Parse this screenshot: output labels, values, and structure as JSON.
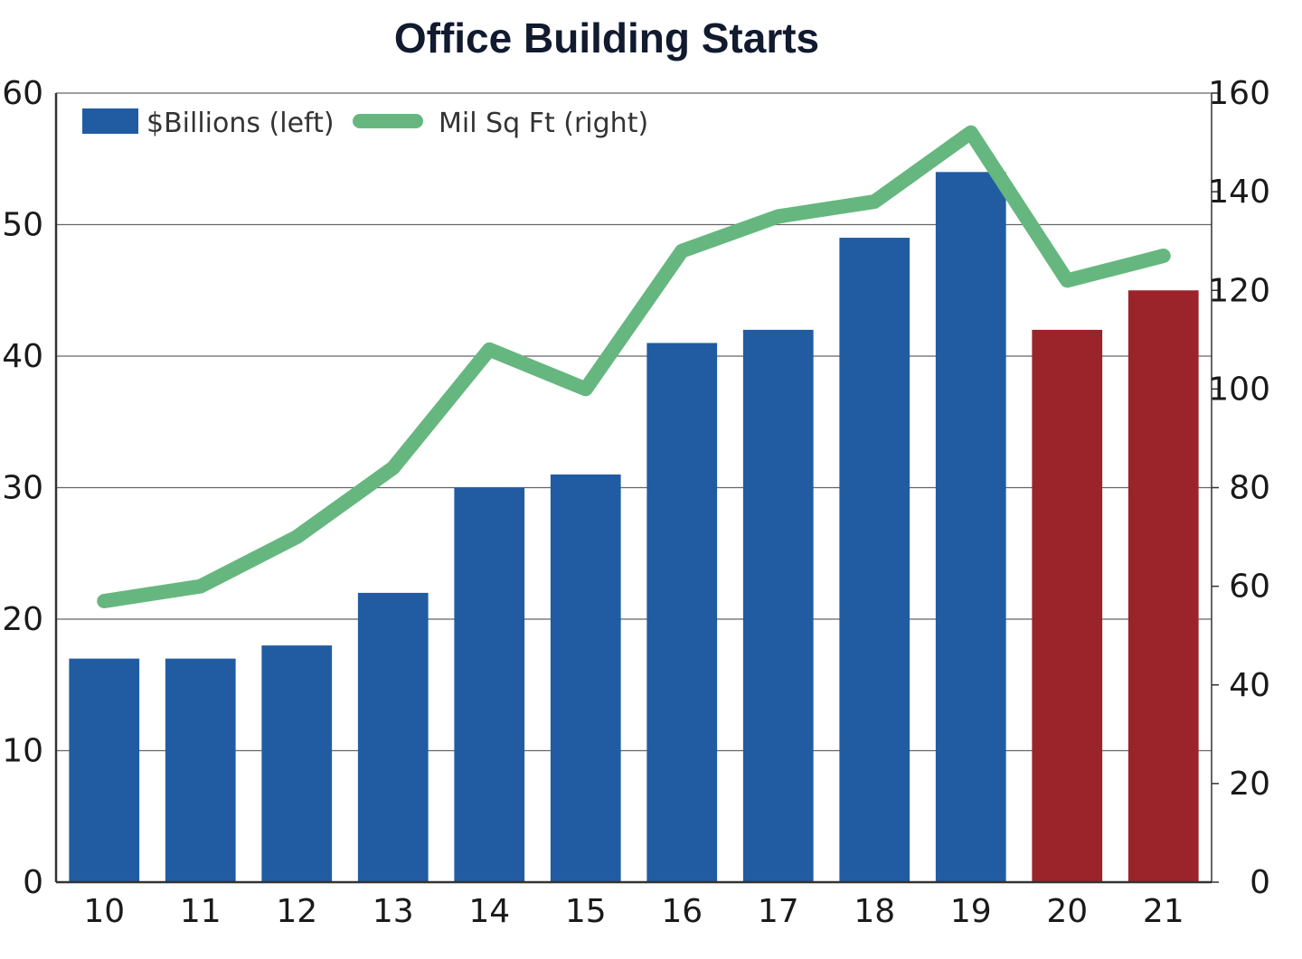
{
  "chart_data": {
    "type": "bar",
    "title": "Office Building Starts",
    "categories": [
      "10",
      "11",
      "12",
      "13",
      "14",
      "15",
      "16",
      "17",
      "18",
      "19",
      "20",
      "21"
    ],
    "series": [
      {
        "name": "$Billions (left)",
        "type": "bar",
        "axis": "left",
        "values": [
          17,
          17,
          18,
          22,
          30,
          31,
          41,
          42,
          49,
          54,
          42,
          45
        ],
        "color": "#215ca3",
        "forecast_color": "#9a2429",
        "forecast_categories": [
          "20",
          "21"
        ]
      },
      {
        "name": "Mil Sq Ft (right)",
        "type": "line",
        "axis": "right",
        "values": [
          57,
          60,
          70,
          84,
          108,
          100,
          128,
          135,
          138,
          152,
          122,
          127
        ],
        "color": "#66b77f"
      }
    ],
    "y_left": {
      "ylim": [
        0,
        60
      ],
      "ticks": [
        "0",
        "10",
        "20",
        "30",
        "40",
        "50",
        "60"
      ]
    },
    "y_right": {
      "ylim": [
        0,
        160
      ],
      "ticks": [
        "0",
        "20",
        "40",
        "60",
        "80",
        "100",
        "120",
        "140",
        "160"
      ]
    },
    "grid": true,
    "legend": "top-left"
  }
}
